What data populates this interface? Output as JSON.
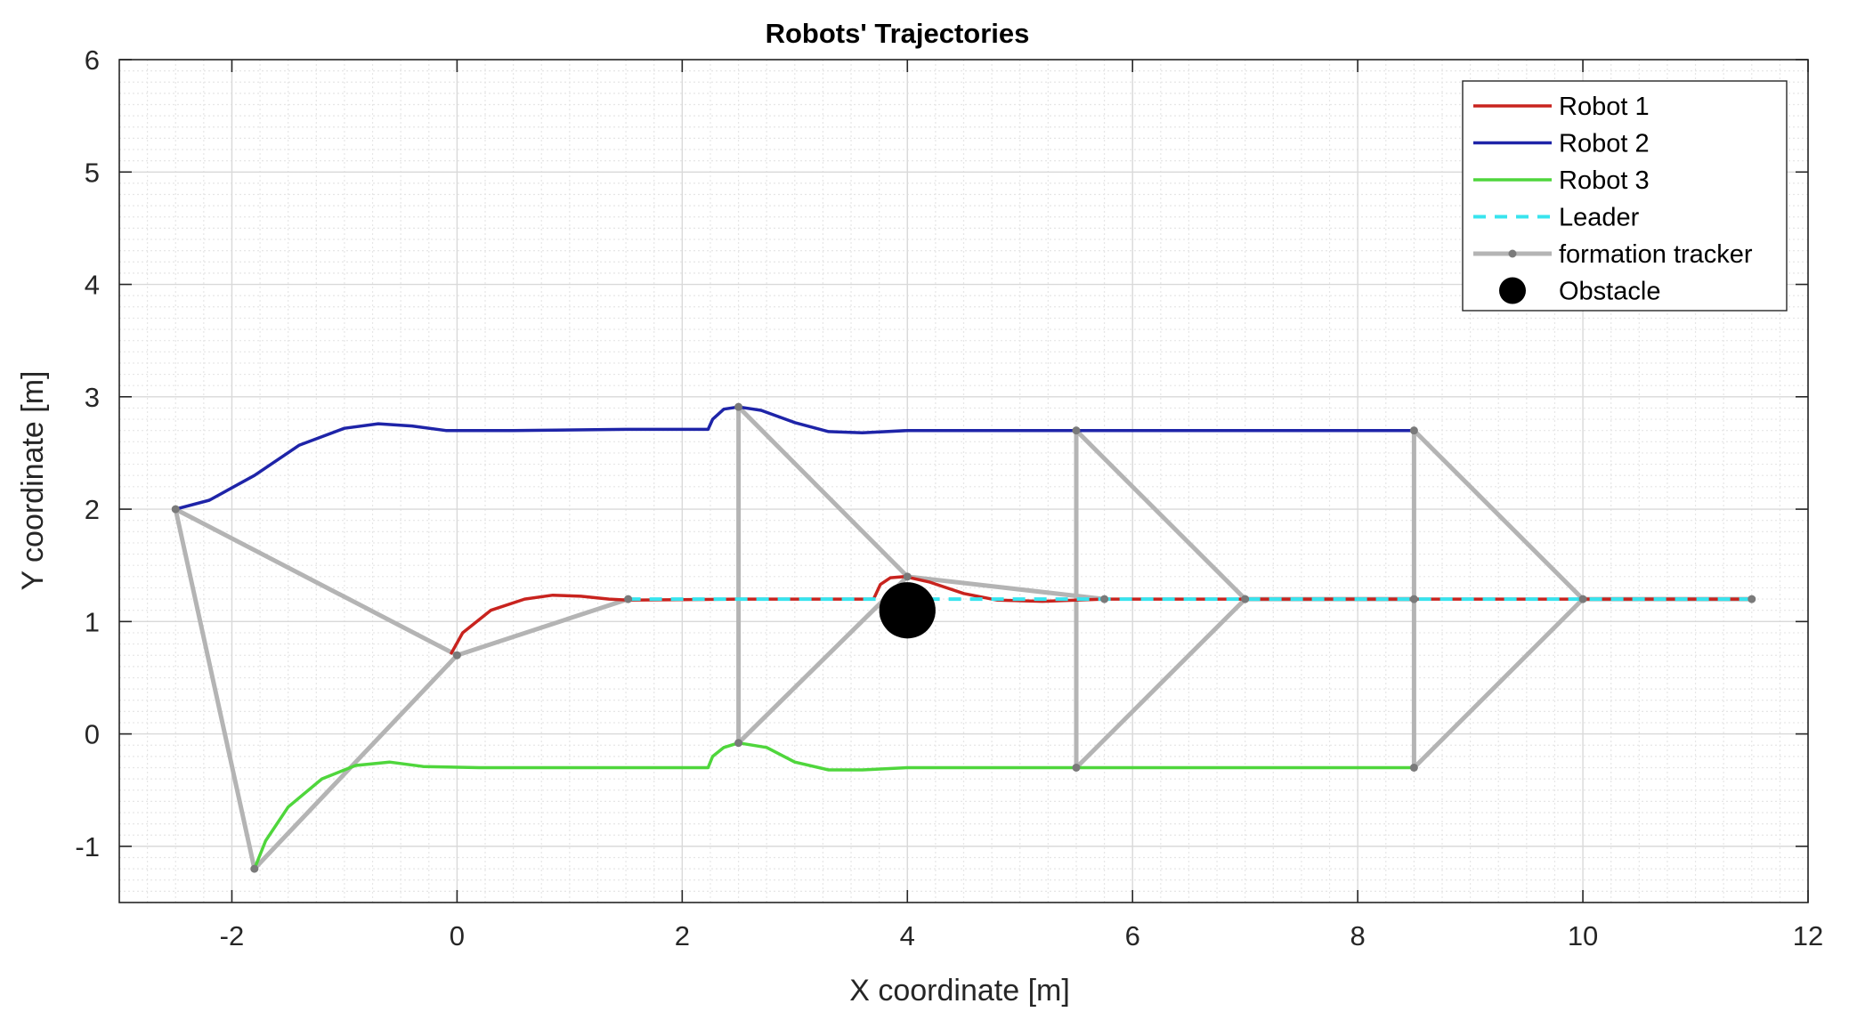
{
  "chart_data": {
    "type": "line",
    "title": "Robots' Trajectories",
    "xlabel": "X coordinate [m]",
    "ylabel": "Y coordinate [m]",
    "xlim": [
      -3,
      12
    ],
    "ylim": [
      -1.5,
      6
    ],
    "xticks": [
      -2,
      0,
      2,
      4,
      6,
      8,
      10,
      12
    ],
    "yticks": [
      -1,
      0,
      1,
      2,
      3,
      4,
      5,
      6
    ],
    "grid": "major and minor",
    "legend_position": "top-right",
    "series": [
      {
        "name": "Robot 1",
        "color": "#c8231e",
        "style": "solid",
        "points": [
          [
            -0.05,
            0.72
          ],
          [
            0.05,
            0.9
          ],
          [
            0.3,
            1.1
          ],
          [
            0.6,
            1.2
          ],
          [
            0.85,
            1.235
          ],
          [
            1.1,
            1.225
          ],
          [
            1.35,
            1.2
          ],
          [
            1.52,
            1.19
          ],
          [
            2.5,
            1.2
          ],
          [
            3.5,
            1.2
          ],
          [
            3.7,
            1.2
          ],
          [
            3.76,
            1.33
          ],
          [
            3.85,
            1.39
          ],
          [
            3.98,
            1.4
          ],
          [
            4.2,
            1.35
          ],
          [
            4.5,
            1.25
          ],
          [
            4.8,
            1.19
          ],
          [
            5.2,
            1.18
          ],
          [
            5.5,
            1.19
          ],
          [
            5.75,
            1.2
          ],
          [
            7.0,
            1.2
          ],
          [
            8.5,
            1.2
          ],
          [
            10.0,
            1.2
          ],
          [
            11.5,
            1.2
          ]
        ]
      },
      {
        "name": "Robot 2",
        "color": "#1e24a8",
        "style": "solid",
        "points": [
          [
            -2.5,
            2.0
          ],
          [
            -2.2,
            2.08
          ],
          [
            -1.8,
            2.3
          ],
          [
            -1.4,
            2.57
          ],
          [
            -1.0,
            2.72
          ],
          [
            -0.7,
            2.76
          ],
          [
            -0.4,
            2.74
          ],
          [
            -0.1,
            2.7
          ],
          [
            0.5,
            2.7
          ],
          [
            1.5,
            2.71
          ],
          [
            2.23,
            2.71
          ],
          [
            2.27,
            2.8
          ],
          [
            2.37,
            2.89
          ],
          [
            2.5,
            2.91
          ],
          [
            2.7,
            2.88
          ],
          [
            3.0,
            2.77
          ],
          [
            3.3,
            2.69
          ],
          [
            3.6,
            2.68
          ],
          [
            4.0,
            2.7
          ],
          [
            5.5,
            2.7
          ],
          [
            8.5,
            2.7
          ]
        ]
      },
      {
        "name": "Robot 3",
        "color": "#4fd63c",
        "style": "solid",
        "points": [
          [
            -1.8,
            -1.2
          ],
          [
            -1.7,
            -0.95
          ],
          [
            -1.5,
            -0.65
          ],
          [
            -1.2,
            -0.4
          ],
          [
            -0.9,
            -0.28
          ],
          [
            -0.6,
            -0.25
          ],
          [
            -0.3,
            -0.29
          ],
          [
            0.2,
            -0.3
          ],
          [
            1.5,
            -0.3
          ],
          [
            2.23,
            -0.3
          ],
          [
            2.27,
            -0.2
          ],
          [
            2.37,
            -0.12
          ],
          [
            2.5,
            -0.08
          ],
          [
            2.75,
            -0.12
          ],
          [
            3.0,
            -0.25
          ],
          [
            3.3,
            -0.32
          ],
          [
            3.6,
            -0.32
          ],
          [
            4.0,
            -0.3
          ],
          [
            5.5,
            -0.3
          ],
          [
            8.5,
            -0.3
          ]
        ]
      },
      {
        "name": "Leader",
        "color": "#38e4ee",
        "style": "dashed",
        "points": [
          [
            1.52,
            1.2
          ],
          [
            11.5,
            1.2
          ]
        ]
      },
      {
        "name": "formation tracker",
        "color": "#b4b4b4",
        "style": "solid-with-markers",
        "segments": [
          [
            [
              -2.5,
              2.0
            ],
            [
              -1.8,
              -1.2
            ]
          ],
          [
            [
              -2.5,
              2.0
            ],
            [
              0.0,
              0.7
            ]
          ],
          [
            [
              -1.8,
              -1.2
            ],
            [
              0.0,
              0.7
            ]
          ],
          [
            [
              0.0,
              0.7
            ],
            [
              1.52,
              1.2
            ]
          ],
          [
            [
              2.5,
              2.91
            ],
            [
              2.5,
              -0.08
            ]
          ],
          [
            [
              2.5,
              2.91
            ],
            [
              4.0,
              1.4
            ]
          ],
          [
            [
              2.5,
              -0.08
            ],
            [
              4.0,
              1.4
            ]
          ],
          [
            [
              4.0,
              1.4
            ],
            [
              5.75,
              1.2
            ]
          ],
          [
            [
              5.5,
              2.7
            ],
            [
              5.5,
              -0.3
            ]
          ],
          [
            [
              5.5,
              2.7
            ],
            [
              7.0,
              1.2
            ]
          ],
          [
            [
              5.5,
              -0.3
            ],
            [
              7.0,
              1.2
            ]
          ],
          [
            [
              7.0,
              1.2
            ],
            [
              8.5,
              1.2
            ]
          ],
          [
            [
              8.5,
              2.7
            ],
            [
              8.5,
              -0.3
            ]
          ],
          [
            [
              8.5,
              2.7
            ],
            [
              10.0,
              1.2
            ]
          ],
          [
            [
              8.5,
              -0.3
            ],
            [
              10.0,
              1.2
            ]
          ],
          [
            [
              10.0,
              1.2
            ],
            [
              11.5,
              1.2
            ]
          ]
        ],
        "markers": [
          [
            -2.5,
            2.0
          ],
          [
            -1.8,
            -1.2
          ],
          [
            0.0,
            0.7
          ],
          [
            1.52,
            1.2
          ],
          [
            2.5,
            2.91
          ],
          [
            2.5,
            -0.08
          ],
          [
            4.0,
            1.4
          ],
          [
            5.5,
            2.7
          ],
          [
            5.5,
            -0.3
          ],
          [
            5.75,
            1.2
          ],
          [
            7.0,
            1.2
          ],
          [
            8.5,
            2.7
          ],
          [
            8.5,
            -0.3
          ],
          [
            8.5,
            1.2
          ],
          [
            10.0,
            1.2
          ],
          [
            11.5,
            1.2
          ]
        ]
      },
      {
        "name": "Obstacle",
        "color": "#000000",
        "style": "marker",
        "points": [
          [
            4.0,
            1.1
          ]
        ],
        "radius_m": 0.25
      }
    ]
  }
}
